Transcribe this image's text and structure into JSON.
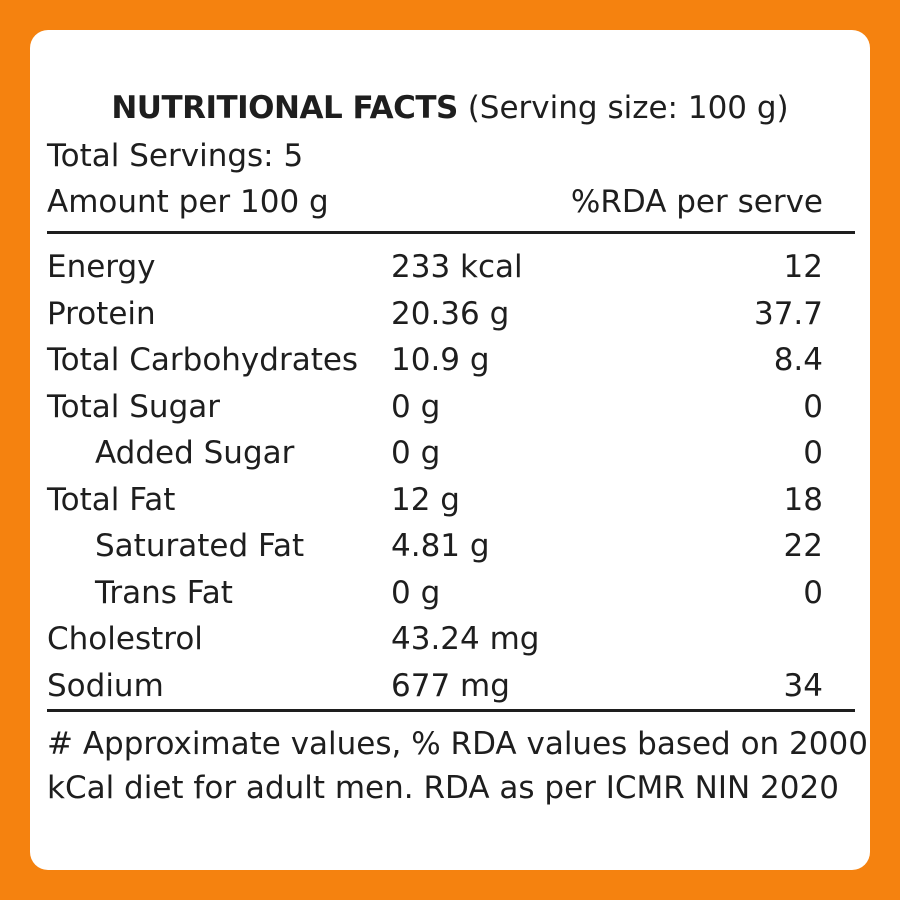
{
  "header": {
    "title_bold": "NUTRITIONAL FACTS",
    "title_rest": " (Serving size: 100 g)",
    "servings": "Total Servings: 5",
    "amount_label": "Amount per 100 g",
    "rda_label": "%RDA per serve"
  },
  "rows": [
    {
      "name": "Energy",
      "amount": "233 kcal",
      "rda": "12",
      "indent": false
    },
    {
      "name": "Protein",
      "amount": "20.36 g",
      "rda": "37.7",
      "indent": false
    },
    {
      "name": "Total Carbohydrates",
      "amount": "10.9 g",
      "rda": "8.4",
      "indent": false
    },
    {
      "name": "Total Sugar",
      "amount": "0 g",
      "rda": "0",
      "indent": false
    },
    {
      "name": "Added Sugar",
      "amount": "0 g",
      "rda": "0",
      "indent": true
    },
    {
      "name": "Total Fat",
      "amount": "12 g",
      "rda": "18",
      "indent": false
    },
    {
      "name": "Saturated Fat",
      "amount": "4.81 g",
      "rda": "22",
      "indent": true
    },
    {
      "name": "Trans Fat",
      "amount": "0 g",
      "rda": "0",
      "indent": true
    },
    {
      "name": "Cholestrol",
      "amount": "43.24 mg",
      "rda": "",
      "indent": false
    },
    {
      "name": "Sodium",
      "amount": "677 mg",
      "rda": "34",
      "indent": false
    }
  ],
  "footnote": {
    "line1": "# Approximate values, % RDA values based on 2000",
    "line2": "kCal diet for adult men. RDA as per ICMR NIN 2020"
  },
  "colors": {
    "border": "#f5820f",
    "card": "#ffffff",
    "text": "#1e1e1e"
  }
}
